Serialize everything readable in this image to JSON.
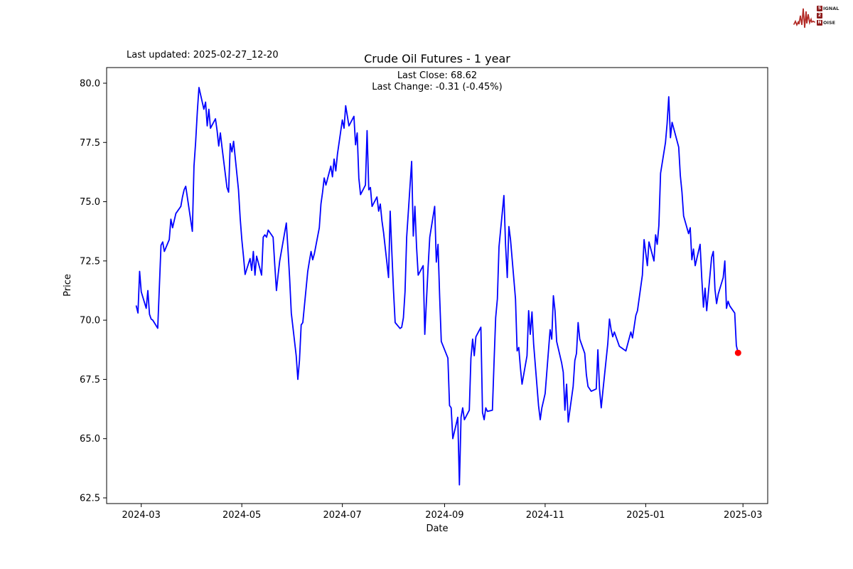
{
  "header": {
    "last_updated": "Last updated: 2025-02-27_12-20"
  },
  "logo": {
    "rows": [
      {
        "badge": "S",
        "rest": "IGNAL"
      },
      {
        "badge": "2",
        "rest": ""
      },
      {
        "badge": "N",
        "rest": "OISE"
      }
    ],
    "wave_color": "#b22a25",
    "badge_color": "#8e1c1c"
  },
  "chart_data": {
    "type": "line",
    "title": "Crude Oil Futures - 1 year",
    "annotations": [
      "Last Close: 68.62",
      "Last Change: -0.31 (-0.45%)"
    ],
    "xlabel": "Date",
    "ylabel": "Price",
    "legend": null,
    "grid": false,
    "line_color": "#0000ff",
    "marker_color": "#ff0000",
    "last_close": 68.62,
    "last_change": -0.31,
    "last_change_pct": "-0.45%",
    "ylim": [
      62.26,
      80.66
    ],
    "xlim": [
      "2024-02-09",
      "2025-03-16"
    ],
    "yticks": [
      62.5,
      65.0,
      67.5,
      70.0,
      72.5,
      75.0,
      77.5,
      80.0
    ],
    "xticks": [
      {
        "label": "2024-03",
        "date": "2024-03-01"
      },
      {
        "label": "2024-05",
        "date": "2024-05-01"
      },
      {
        "label": "2024-07",
        "date": "2024-07-01"
      },
      {
        "label": "2024-09",
        "date": "2024-09-01"
      },
      {
        "label": "2024-11",
        "date": "2024-11-01"
      },
      {
        "label": "2025-01",
        "date": "2025-01-01"
      },
      {
        "label": "2025-03",
        "date": "2025-03-01"
      }
    ],
    "series": [
      {
        "name": "Crude Oil Futures",
        "x": [
          "2024-02-27",
          "2024-02-28",
          "2024-02-29",
          "2024-03-01",
          "2024-03-04",
          "2024-03-05",
          "2024-03-06",
          "2024-03-07",
          "2024-03-08",
          "2024-03-11",
          "2024-03-12",
          "2024-03-13",
          "2024-03-14",
          "2024-03-15",
          "2024-03-18",
          "2024-03-19",
          "2024-03-20",
          "2024-03-21",
          "2024-03-22",
          "2024-03-25",
          "2024-03-26",
          "2024-03-27",
          "2024-03-28",
          "2024-04-01",
          "2024-04-02",
          "2024-04-03",
          "2024-04-04",
          "2024-04-05",
          "2024-04-08",
          "2024-04-09",
          "2024-04-10",
          "2024-04-11",
          "2024-04-12",
          "2024-04-15",
          "2024-04-16",
          "2024-04-17",
          "2024-04-18",
          "2024-04-19",
          "2024-04-22",
          "2024-04-23",
          "2024-04-24",
          "2024-04-25",
          "2024-04-26",
          "2024-04-29",
          "2024-04-30",
          "2024-05-01",
          "2024-05-02",
          "2024-05-03",
          "2024-05-06",
          "2024-05-07",
          "2024-05-08",
          "2024-05-09",
          "2024-05-10",
          "2024-05-13",
          "2024-05-14",
          "2024-05-15",
          "2024-05-16",
          "2024-05-17",
          "2024-05-20",
          "2024-05-21",
          "2024-05-22",
          "2024-05-23",
          "2024-05-24",
          "2024-05-28",
          "2024-05-29",
          "2024-05-30",
          "2024-05-31",
          "2024-06-03",
          "2024-06-04",
          "2024-06-05",
          "2024-06-06",
          "2024-06-07",
          "2024-06-10",
          "2024-06-11",
          "2024-06-12",
          "2024-06-13",
          "2024-06-14",
          "2024-06-17",
          "2024-06-18",
          "2024-06-19",
          "2024-06-20",
          "2024-06-21",
          "2024-06-24",
          "2024-06-25",
          "2024-06-26",
          "2024-06-27",
          "2024-06-28",
          "2024-07-01",
          "2024-07-02",
          "2024-07-03",
          "2024-07-05",
          "2024-07-08",
          "2024-07-09",
          "2024-07-10",
          "2024-07-11",
          "2024-07-12",
          "2024-07-15",
          "2024-07-16",
          "2024-07-17",
          "2024-07-18",
          "2024-07-19",
          "2024-07-22",
          "2024-07-23",
          "2024-07-24",
          "2024-07-25",
          "2024-07-26",
          "2024-07-29",
          "2024-07-30",
          "2024-07-31",
          "2024-08-01",
          "2024-08-02",
          "2024-08-05",
          "2024-08-06",
          "2024-08-07",
          "2024-08-08",
          "2024-08-09",
          "2024-08-12",
          "2024-08-13",
          "2024-08-14",
          "2024-08-15",
          "2024-08-16",
          "2024-08-19",
          "2024-08-20",
          "2024-08-21",
          "2024-08-22",
          "2024-08-23",
          "2024-08-26",
          "2024-08-27",
          "2024-08-28",
          "2024-08-29",
          "2024-08-30",
          "2024-09-03",
          "2024-09-04",
          "2024-09-05",
          "2024-09-06",
          "2024-09-09",
          "2024-09-10",
          "2024-09-11",
          "2024-09-12",
          "2024-09-13",
          "2024-09-16",
          "2024-09-17",
          "2024-09-18",
          "2024-09-19",
          "2024-09-20",
          "2024-09-23",
          "2024-09-24",
          "2024-09-25",
          "2024-09-26",
          "2024-09-27",
          "2024-09-30",
          "2024-10-01",
          "2024-10-02",
          "2024-10-03",
          "2024-10-04",
          "2024-10-07",
          "2024-10-08",
          "2024-10-09",
          "2024-10-10",
          "2024-10-11",
          "2024-10-14",
          "2024-10-15",
          "2024-10-16",
          "2024-10-17",
          "2024-10-18",
          "2024-10-21",
          "2024-10-22",
          "2024-10-23",
          "2024-10-24",
          "2024-10-25",
          "2024-10-28",
          "2024-10-29",
          "2024-10-30",
          "2024-10-31",
          "2024-11-01",
          "2024-11-04",
          "2024-11-05",
          "2024-11-06",
          "2024-11-07",
          "2024-11-08",
          "2024-11-11",
          "2024-11-12",
          "2024-11-13",
          "2024-11-14",
          "2024-11-15",
          "2024-11-18",
          "2024-11-19",
          "2024-11-20",
          "2024-11-21",
          "2024-11-22",
          "2024-11-25",
          "2024-11-26",
          "2024-11-27",
          "2024-11-29",
          "2024-12-02",
          "2024-12-03",
          "2024-12-04",
          "2024-12-05",
          "2024-12-06",
          "2024-12-09",
          "2024-12-10",
          "2024-12-11",
          "2024-12-12",
          "2024-12-13",
          "2024-12-16",
          "2024-12-17",
          "2024-12-18",
          "2024-12-19",
          "2024-12-20",
          "2024-12-23",
          "2024-12-24",
          "2024-12-26",
          "2024-12-27",
          "2024-12-30",
          "2024-12-31",
          "2025-01-02",
          "2025-01-03",
          "2025-01-06",
          "2025-01-07",
          "2025-01-08",
          "2025-01-09",
          "2025-01-10",
          "2025-01-13",
          "2025-01-14",
          "2025-01-15",
          "2025-01-16",
          "2025-01-17",
          "2025-01-21",
          "2025-01-22",
          "2025-01-23",
          "2025-01-24",
          "2025-01-27",
          "2025-01-28",
          "2025-01-29",
          "2025-01-30",
          "2025-01-31",
          "2025-02-03",
          "2025-02-04",
          "2025-02-05",
          "2025-02-06",
          "2025-02-07",
          "2025-02-10",
          "2025-02-11",
          "2025-02-12",
          "2025-02-13",
          "2025-02-14",
          "2025-02-17",
          "2025-02-18",
          "2025-02-19",
          "2025-02-20",
          "2025-02-21",
          "2025-02-24",
          "2025-02-25",
          "2025-02-26"
        ],
        "y": [
          70.6,
          70.3,
          72.06,
          71.2,
          70.5,
          71.25,
          70.25,
          70.05,
          70.0,
          69.66,
          71.4,
          73.16,
          73.3,
          72.9,
          73.4,
          74.26,
          73.9,
          74.2,
          74.5,
          74.8,
          75.2,
          75.5,
          75.65,
          73.75,
          76.5,
          77.5,
          78.8,
          79.82,
          78.9,
          79.2,
          78.2,
          78.9,
          78.1,
          78.5,
          78.0,
          77.35,
          77.9,
          77.3,
          75.6,
          75.4,
          77.45,
          77.1,
          77.55,
          75.5,
          74.3,
          73.4,
          72.7,
          71.93,
          72.6,
          72.1,
          72.9,
          71.9,
          72.7,
          71.9,
          73.5,
          73.6,
          73.5,
          73.8,
          73.5,
          72.3,
          71.25,
          71.9,
          72.5,
          74.1,
          73.0,
          71.8,
          70.3,
          68.5,
          67.5,
          68.3,
          69.8,
          69.9,
          72.05,
          72.5,
          72.9,
          72.55,
          72.8,
          73.9,
          74.9,
          75.4,
          76.0,
          75.7,
          76.5,
          76.05,
          76.8,
          76.3,
          77.0,
          78.45,
          78.1,
          79.05,
          78.2,
          78.6,
          77.4,
          77.9,
          76.0,
          75.3,
          75.7,
          78.0,
          75.5,
          75.6,
          74.8,
          75.2,
          74.6,
          74.9,
          74.2,
          73.7,
          71.8,
          74.6,
          72.9,
          71.3,
          69.9,
          69.65,
          69.7,
          70.1,
          71.2,
          73.5,
          76.7,
          73.55,
          74.8,
          73.1,
          71.9,
          72.3,
          69.4,
          70.8,
          72.2,
          73.5,
          74.8,
          72.45,
          73.2,
          71.0,
          69.1,
          68.4,
          66.4,
          66.3,
          65.0,
          65.9,
          63.05,
          65.9,
          66.3,
          65.8,
          66.2,
          68.4,
          69.2,
          68.5,
          69.3,
          69.7,
          66.1,
          65.8,
          66.3,
          66.15,
          66.2,
          68.2,
          70.1,
          70.9,
          73.1,
          75.26,
          73.2,
          71.8,
          73.95,
          73.4,
          70.9,
          68.7,
          68.85,
          68.0,
          67.3,
          68.5,
          70.4,
          69.4,
          70.35,
          69.0,
          66.4,
          65.8,
          66.3,
          66.6,
          66.9,
          69.6,
          69.2,
          71.03,
          70.4,
          69.1,
          68.2,
          67.8,
          66.2,
          67.3,
          65.7,
          67.2,
          68.3,
          68.6,
          69.9,
          69.2,
          68.6,
          67.7,
          67.2,
          67.0,
          67.1,
          68.75,
          67.1,
          66.3,
          67.0,
          69.0,
          70.05,
          69.6,
          69.3,
          69.5,
          68.9,
          68.85,
          68.8,
          68.75,
          68.7,
          69.5,
          69.25,
          70.2,
          70.4,
          71.9,
          73.4,
          72.3,
          73.3,
          72.5,
          73.6,
          73.2,
          74.0,
          76.2,
          77.5,
          78.3,
          79.43,
          77.7,
          78.35,
          77.3,
          76.1,
          75.4,
          74.4,
          73.65,
          73.9,
          72.55,
          73.0,
          72.3,
          73.2,
          71.8,
          70.55,
          71.35,
          70.4,
          72.65,
          72.9,
          71.3,
          70.7,
          71.1,
          71.8,
          72.5,
          70.5,
          70.8,
          70.6,
          70.3,
          68.93,
          68.62
        ]
      }
    ]
  }
}
